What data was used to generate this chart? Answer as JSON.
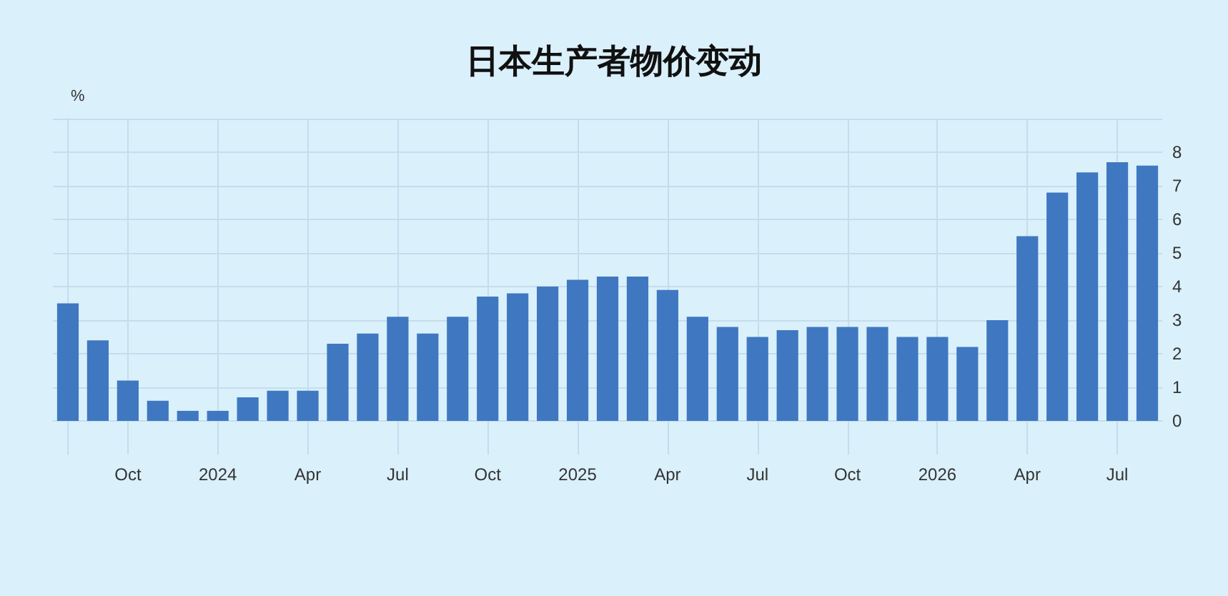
{
  "chart_data": {
    "type": "bar",
    "title": "日本生产者物价变动",
    "ylabel": "%",
    "categories": [
      null,
      null,
      "Oct",
      null,
      null,
      "2024",
      null,
      null,
      "Apr",
      null,
      null,
      "Jul",
      null,
      null,
      "Oct",
      null,
      null,
      "2025",
      null,
      null,
      "Apr",
      null,
      null,
      "Jul",
      null,
      null,
      "Oct",
      null,
      null,
      "2026",
      null,
      null,
      "Apr",
      null,
      null,
      "Jul",
      null
    ],
    "values": [
      3.5,
      2.4,
      1.2,
      0.6,
      0.3,
      0.3,
      0.7,
      0.9,
      0.9,
      2.3,
      2.6,
      3.1,
      2.6,
      3.1,
      3.7,
      3.8,
      4.0,
      4.2,
      4.3,
      4.3,
      3.9,
      3.1,
      2.8,
      2.5,
      2.7,
      2.8,
      2.8,
      2.8,
      2.5,
      2.5,
      2.2,
      3.0,
      5.5,
      6.8,
      7.4,
      7.7,
      7.6
    ],
    "color": "#3f78c0",
    "ylim": [
      -1,
      9
    ],
    "yticks": [
      0,
      1,
      2,
      3,
      4,
      5,
      6,
      7,
      8,
      {
        "value": 9,
        "label": null
      }
    ],
    "grid": true
  }
}
